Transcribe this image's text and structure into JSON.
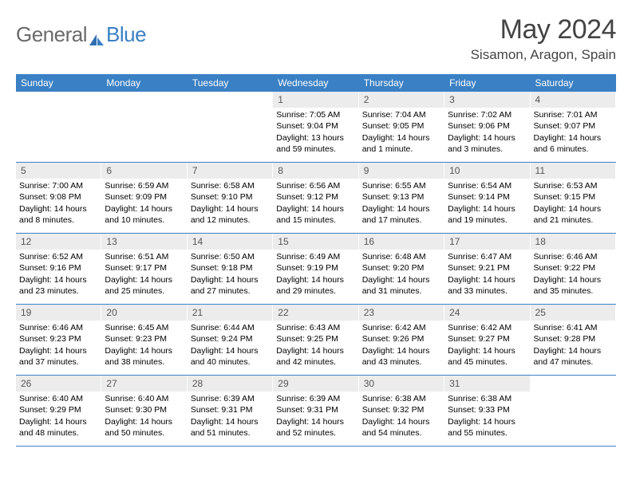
{
  "logo": {
    "general": "General",
    "blue": "Blue"
  },
  "title": "May 2024",
  "location": "Sisamon, Aragon, Spain",
  "colors": {
    "accent": "#3a80c4",
    "daynum_bg": "#ececec",
    "text": "#000000",
    "heading": "#444444",
    "logo_gray": "#6a6a6a"
  },
  "daynames": [
    "Sunday",
    "Monday",
    "Tuesday",
    "Wednesday",
    "Thursday",
    "Friday",
    "Saturday"
  ],
  "weeks": [
    [
      {
        "n": "",
        "sunrise": "",
        "sunset": "",
        "daylight": ""
      },
      {
        "n": "",
        "sunrise": "",
        "sunset": "",
        "daylight": ""
      },
      {
        "n": "",
        "sunrise": "",
        "sunset": "",
        "daylight": ""
      },
      {
        "n": "1",
        "sunrise": "Sunrise: 7:05 AM",
        "sunset": "Sunset: 9:04 PM",
        "daylight": "Daylight: 13 hours and 59 minutes."
      },
      {
        "n": "2",
        "sunrise": "Sunrise: 7:04 AM",
        "sunset": "Sunset: 9:05 PM",
        "daylight": "Daylight: 14 hours and 1 minute."
      },
      {
        "n": "3",
        "sunrise": "Sunrise: 7:02 AM",
        "sunset": "Sunset: 9:06 PM",
        "daylight": "Daylight: 14 hours and 3 minutes."
      },
      {
        "n": "4",
        "sunrise": "Sunrise: 7:01 AM",
        "sunset": "Sunset: 9:07 PM",
        "daylight": "Daylight: 14 hours and 6 minutes."
      }
    ],
    [
      {
        "n": "5",
        "sunrise": "Sunrise: 7:00 AM",
        "sunset": "Sunset: 9:08 PM",
        "daylight": "Daylight: 14 hours and 8 minutes."
      },
      {
        "n": "6",
        "sunrise": "Sunrise: 6:59 AM",
        "sunset": "Sunset: 9:09 PM",
        "daylight": "Daylight: 14 hours and 10 minutes."
      },
      {
        "n": "7",
        "sunrise": "Sunrise: 6:58 AM",
        "sunset": "Sunset: 9:10 PM",
        "daylight": "Daylight: 14 hours and 12 minutes."
      },
      {
        "n": "8",
        "sunrise": "Sunrise: 6:56 AM",
        "sunset": "Sunset: 9:12 PM",
        "daylight": "Daylight: 14 hours and 15 minutes."
      },
      {
        "n": "9",
        "sunrise": "Sunrise: 6:55 AM",
        "sunset": "Sunset: 9:13 PM",
        "daylight": "Daylight: 14 hours and 17 minutes."
      },
      {
        "n": "10",
        "sunrise": "Sunrise: 6:54 AM",
        "sunset": "Sunset: 9:14 PM",
        "daylight": "Daylight: 14 hours and 19 minutes."
      },
      {
        "n": "11",
        "sunrise": "Sunrise: 6:53 AM",
        "sunset": "Sunset: 9:15 PM",
        "daylight": "Daylight: 14 hours and 21 minutes."
      }
    ],
    [
      {
        "n": "12",
        "sunrise": "Sunrise: 6:52 AM",
        "sunset": "Sunset: 9:16 PM",
        "daylight": "Daylight: 14 hours and 23 minutes."
      },
      {
        "n": "13",
        "sunrise": "Sunrise: 6:51 AM",
        "sunset": "Sunset: 9:17 PM",
        "daylight": "Daylight: 14 hours and 25 minutes."
      },
      {
        "n": "14",
        "sunrise": "Sunrise: 6:50 AM",
        "sunset": "Sunset: 9:18 PM",
        "daylight": "Daylight: 14 hours and 27 minutes."
      },
      {
        "n": "15",
        "sunrise": "Sunrise: 6:49 AM",
        "sunset": "Sunset: 9:19 PM",
        "daylight": "Daylight: 14 hours and 29 minutes."
      },
      {
        "n": "16",
        "sunrise": "Sunrise: 6:48 AM",
        "sunset": "Sunset: 9:20 PM",
        "daylight": "Daylight: 14 hours and 31 minutes."
      },
      {
        "n": "17",
        "sunrise": "Sunrise: 6:47 AM",
        "sunset": "Sunset: 9:21 PM",
        "daylight": "Daylight: 14 hours and 33 minutes."
      },
      {
        "n": "18",
        "sunrise": "Sunrise: 6:46 AM",
        "sunset": "Sunset: 9:22 PM",
        "daylight": "Daylight: 14 hours and 35 minutes."
      }
    ],
    [
      {
        "n": "19",
        "sunrise": "Sunrise: 6:46 AM",
        "sunset": "Sunset: 9:23 PM",
        "daylight": "Daylight: 14 hours and 37 minutes."
      },
      {
        "n": "20",
        "sunrise": "Sunrise: 6:45 AM",
        "sunset": "Sunset: 9:23 PM",
        "daylight": "Daylight: 14 hours and 38 minutes."
      },
      {
        "n": "21",
        "sunrise": "Sunrise: 6:44 AM",
        "sunset": "Sunset: 9:24 PM",
        "daylight": "Daylight: 14 hours and 40 minutes."
      },
      {
        "n": "22",
        "sunrise": "Sunrise: 6:43 AM",
        "sunset": "Sunset: 9:25 PM",
        "daylight": "Daylight: 14 hours and 42 minutes."
      },
      {
        "n": "23",
        "sunrise": "Sunrise: 6:42 AM",
        "sunset": "Sunset: 9:26 PM",
        "daylight": "Daylight: 14 hours and 43 minutes."
      },
      {
        "n": "24",
        "sunrise": "Sunrise: 6:42 AM",
        "sunset": "Sunset: 9:27 PM",
        "daylight": "Daylight: 14 hours and 45 minutes."
      },
      {
        "n": "25",
        "sunrise": "Sunrise: 6:41 AM",
        "sunset": "Sunset: 9:28 PM",
        "daylight": "Daylight: 14 hours and 47 minutes."
      }
    ],
    [
      {
        "n": "26",
        "sunrise": "Sunrise: 6:40 AM",
        "sunset": "Sunset: 9:29 PM",
        "daylight": "Daylight: 14 hours and 48 minutes."
      },
      {
        "n": "27",
        "sunrise": "Sunrise: 6:40 AM",
        "sunset": "Sunset: 9:30 PM",
        "daylight": "Daylight: 14 hours and 50 minutes."
      },
      {
        "n": "28",
        "sunrise": "Sunrise: 6:39 AM",
        "sunset": "Sunset: 9:31 PM",
        "daylight": "Daylight: 14 hours and 51 minutes."
      },
      {
        "n": "29",
        "sunrise": "Sunrise: 6:39 AM",
        "sunset": "Sunset: 9:31 PM",
        "daylight": "Daylight: 14 hours and 52 minutes."
      },
      {
        "n": "30",
        "sunrise": "Sunrise: 6:38 AM",
        "sunset": "Sunset: 9:32 PM",
        "daylight": "Daylight: 14 hours and 54 minutes."
      },
      {
        "n": "31",
        "sunrise": "Sunrise: 6:38 AM",
        "sunset": "Sunset: 9:33 PM",
        "daylight": "Daylight: 14 hours and 55 minutes."
      },
      {
        "n": "",
        "sunrise": "",
        "sunset": "",
        "daylight": ""
      }
    ]
  ]
}
